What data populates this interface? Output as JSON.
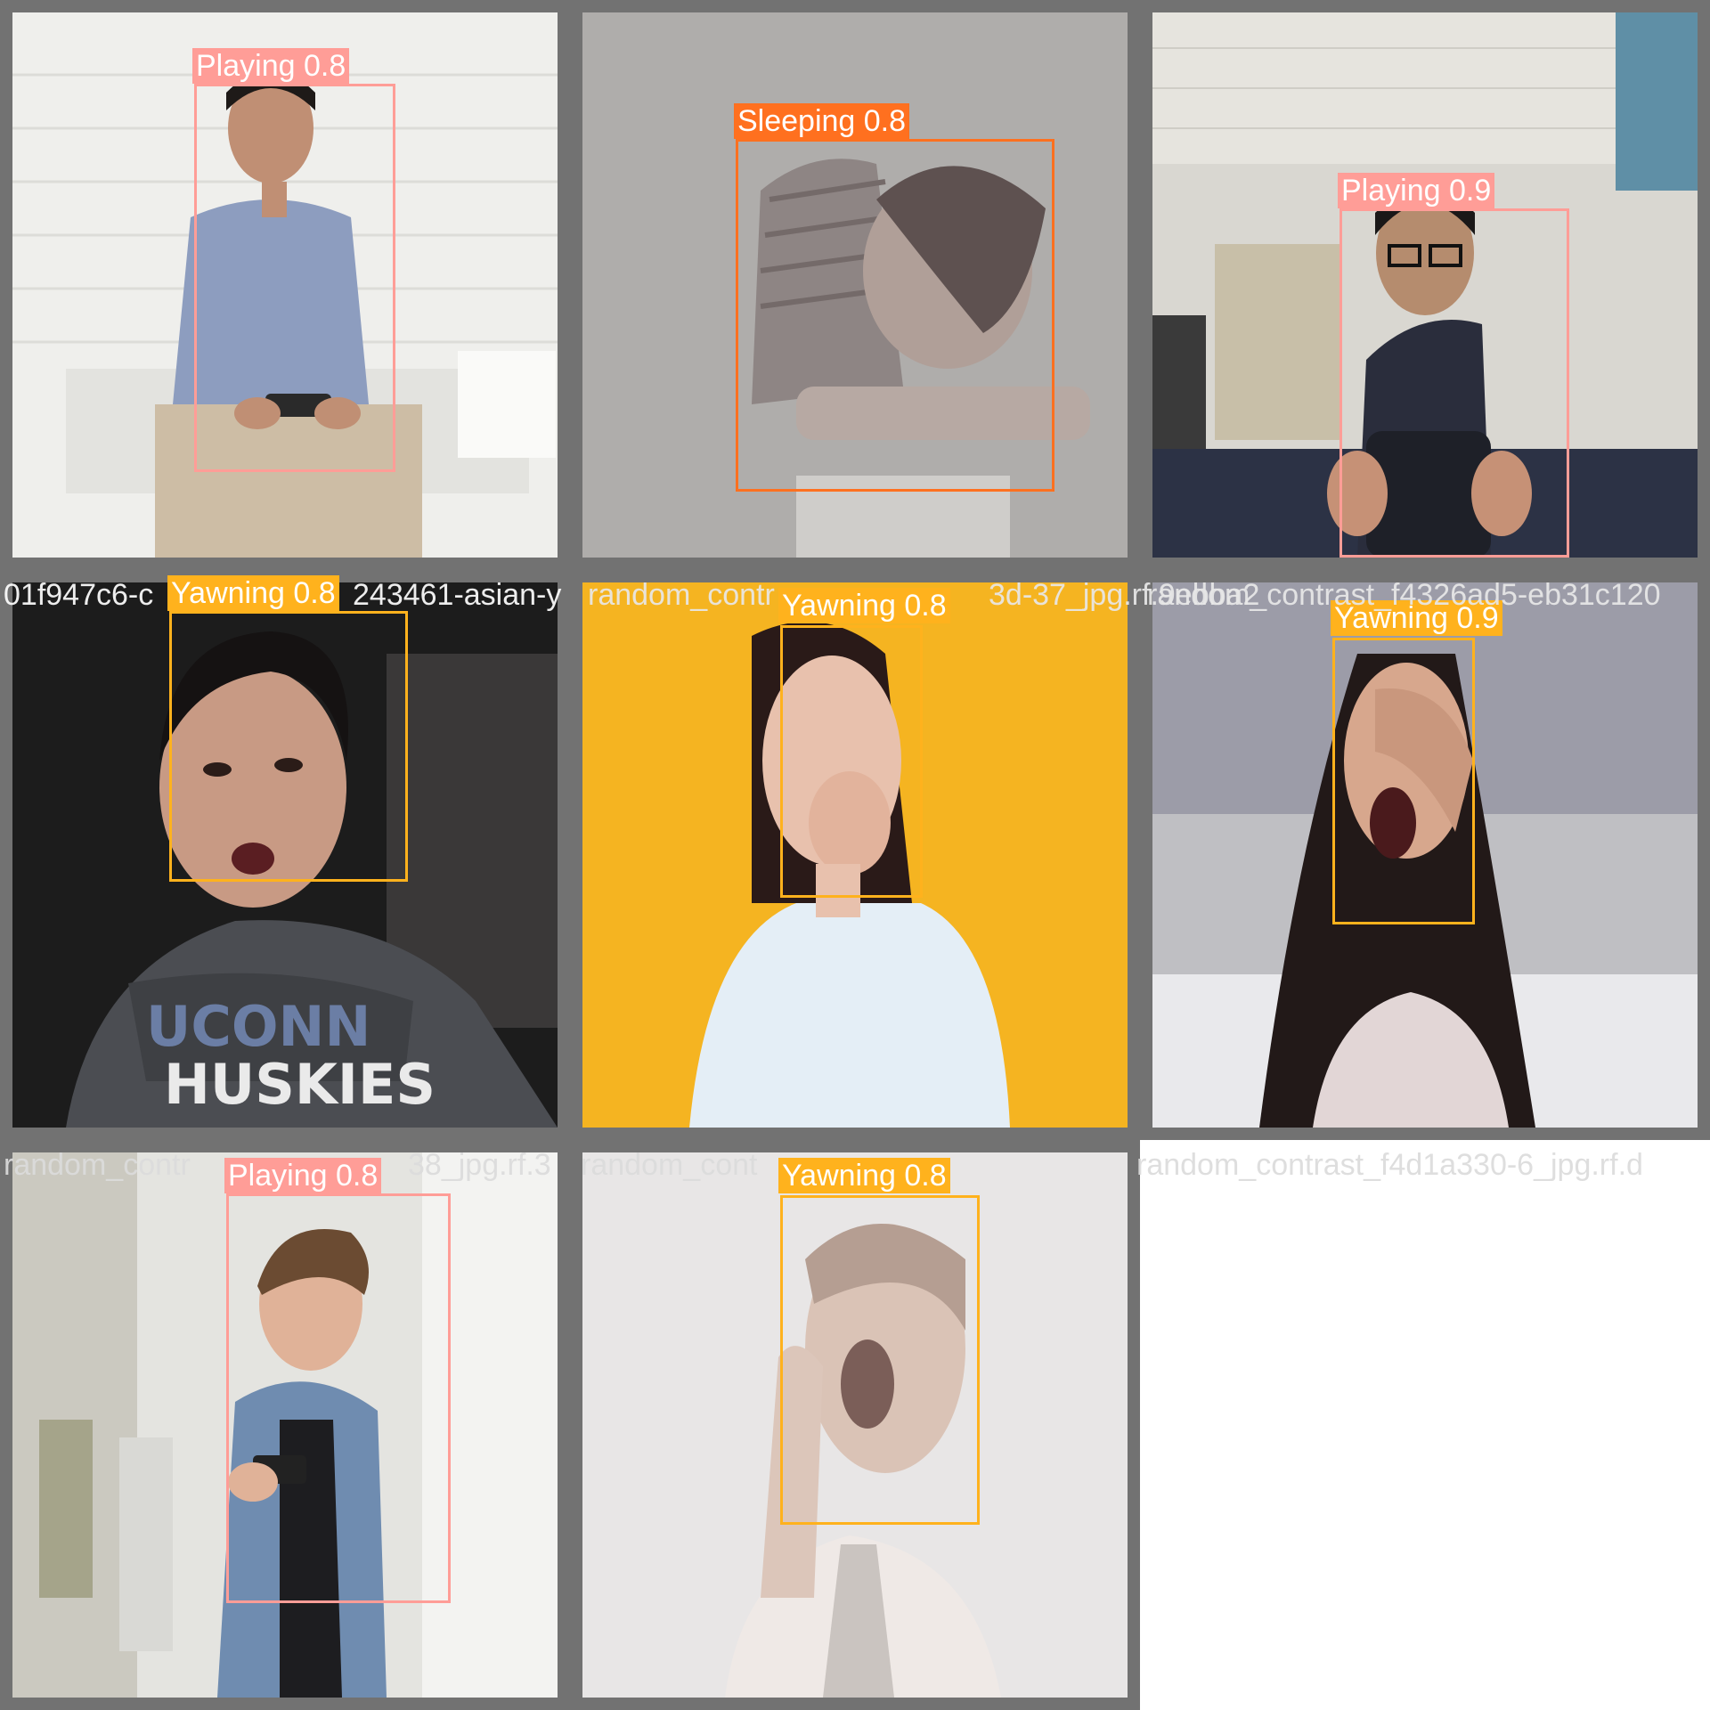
{
  "grid": {
    "tiles": [
      {
        "label": "Playing 0.8",
        "class": "Playing",
        "confidence": 0.8
      },
      {
        "label": "Sleeping 0.8",
        "class": "Sleeping",
        "confidence": 0.8
      },
      {
        "label": "Playing 0.9",
        "class": "Playing",
        "confidence": 0.9
      },
      {
        "label": "Yawning 0.8",
        "class": "Yawning",
        "confidence": 0.8
      },
      {
        "label": "Yawning 0.8",
        "class": "Yawning",
        "confidence": 0.8
      },
      {
        "label": "Yawning 0.9",
        "class": "Yawning",
        "confidence": 0.9
      },
      {
        "label": "Playing 0.8",
        "class": "Playing",
        "confidence": 0.8
      },
      {
        "label": "Yawning 0.8",
        "class": "Yawning",
        "confidence": 0.8
      }
    ]
  },
  "filenames": {
    "row2_a": "01f947c6-c",
    "row2_b": "243461-asian-y",
    "row2_c": "random_contr",
    "row2_d": "3d-37_jpg.rf.9ebba2",
    "row2_e": "random_contrast_f4326ad5-eb31c120",
    "row3_a": "random_contr",
    "row3_b": "38_jpg.rf.3",
    "row3_c": "random_cont",
    "row3_d": "random_contrast_f4d1a330-6_jpg.rf.d"
  },
  "colors": {
    "Playing": "#ff9d97",
    "Sleeping": "#ff701f",
    "Yawning": "#ffb21d",
    "tile_border": "#727272"
  }
}
